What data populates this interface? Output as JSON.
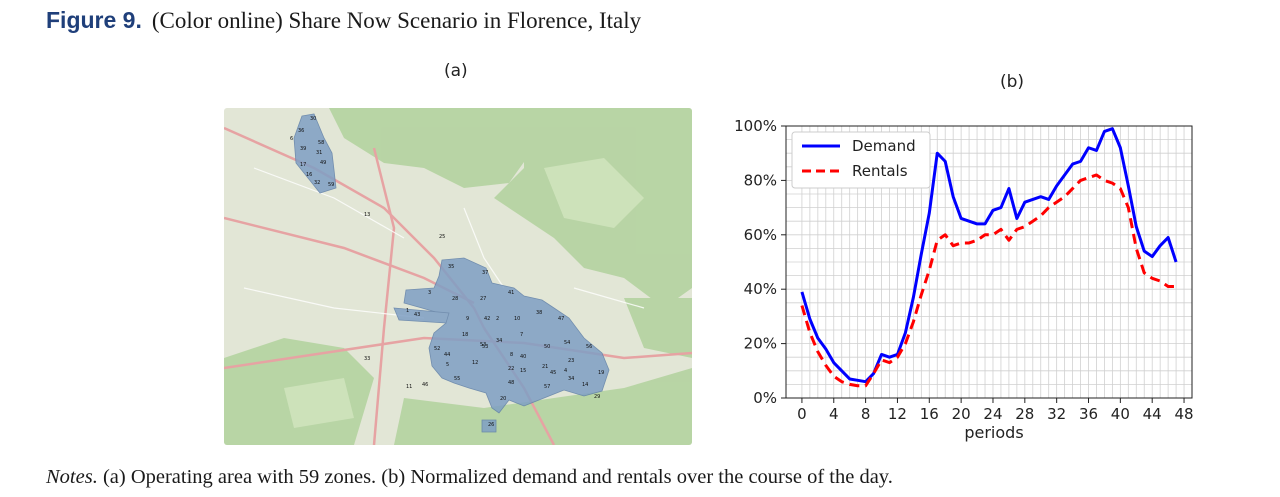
{
  "figure": {
    "label": "Figure 9.",
    "caption": "(Color online) Share Now Scenario in Florence, Italy"
  },
  "panels": {
    "a_label": "(a)",
    "b_label": "(b)"
  },
  "map": {
    "zone_labels": [
      "30",
      "36",
      "6",
      "58",
      "39",
      "31",
      "49",
      "17",
      "16",
      "32",
      "59",
      "13",
      "25",
      "35",
      "37",
      "3",
      "28",
      "27",
      "41",
      "1",
      "43",
      "9",
      "42",
      "2",
      "10",
      "38",
      "47",
      "18",
      "34",
      "7",
      "53",
      "50",
      "54",
      "52",
      "53",
      "56",
      "44",
      "8",
      "40",
      "5",
      "12",
      "22",
      "15",
      "21",
      "45",
      "23",
      "4",
      "19",
      "55",
      "48",
      "57",
      "34",
      "14",
      "11",
      "46",
      "20",
      "29",
      "26",
      "33"
    ],
    "colors": {
      "background": "#e3e8d8",
      "zone_fill": "#7f9fc4",
      "forest": "#aed19b",
      "road": "#e8a3a3"
    }
  },
  "chart_data": {
    "type": "line",
    "title": "",
    "xlabel": "periods",
    "ylabel": "",
    "xlim": [
      -2,
      49
    ],
    "ylim": [
      0,
      100
    ],
    "x_ticks": [
      0,
      4,
      8,
      12,
      16,
      20,
      24,
      28,
      32,
      36,
      40,
      44,
      48
    ],
    "y_ticks": [
      0,
      20,
      40,
      60,
      80,
      100
    ],
    "y_tick_labels": [
      "0%",
      "20%",
      "40%",
      "60%",
      "80%",
      "100%"
    ],
    "grid": true,
    "legend_position": "top-left",
    "x": [
      0,
      1,
      2,
      3,
      4,
      5,
      6,
      7,
      8,
      9,
      10,
      11,
      12,
      13,
      14,
      15,
      16,
      17,
      18,
      19,
      20,
      21,
      22,
      23,
      24,
      25,
      26,
      27,
      28,
      29,
      30,
      31,
      32,
      33,
      34,
      35,
      36,
      37,
      38,
      39,
      40,
      41,
      42,
      43,
      44,
      45,
      46,
      47
    ],
    "series": [
      {
        "name": "Demand",
        "color": "#0000ff",
        "dash": "solid",
        "values": [
          39,
          29,
          22,
          18,
          13,
          10,
          7,
          6.5,
          6,
          9,
          16,
          15,
          16,
          24,
          37,
          53,
          68,
          90,
          87,
          74,
          66,
          65,
          64,
          64,
          69,
          70,
          77,
          66,
          72,
          73,
          74,
          73,
          78,
          82,
          86,
          87,
          92,
          91,
          98,
          99,
          92,
          78,
          63,
          54,
          52,
          56,
          59,
          50
        ]
      },
      {
        "name": "Rentals",
        "color": "#ff0000",
        "dash": "dashed",
        "values": [
          34,
          24,
          17,
          12,
          8,
          6,
          5,
          4.5,
          4.5,
          9,
          14,
          13,
          15,
          20,
          28,
          38,
          47,
          58,
          60,
          56,
          57,
          57,
          58,
          60,
          60,
          62,
          58,
          62,
          63,
          65,
          67,
          70,
          72,
          74,
          77,
          80,
          81,
          82,
          80,
          79,
          77,
          70,
          55,
          46,
          44,
          43,
          41,
          41
        ]
      }
    ]
  },
  "notes": {
    "label": "Notes.",
    "text": "(a) Operating area with 59 zones. (b) Normalized demand and rentals over the course of the day."
  }
}
